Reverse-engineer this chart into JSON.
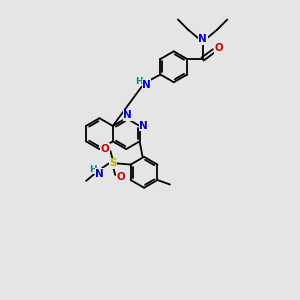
{
  "bg_color": "#e5e5e5",
  "bond_color": "#000000",
  "bond_width": 1.3,
  "atom_colors": {
    "N": "#0000cc",
    "O": "#cc0000",
    "S": "#bbaa00",
    "H_label": "#008888",
    "C": "#000000"
  }
}
